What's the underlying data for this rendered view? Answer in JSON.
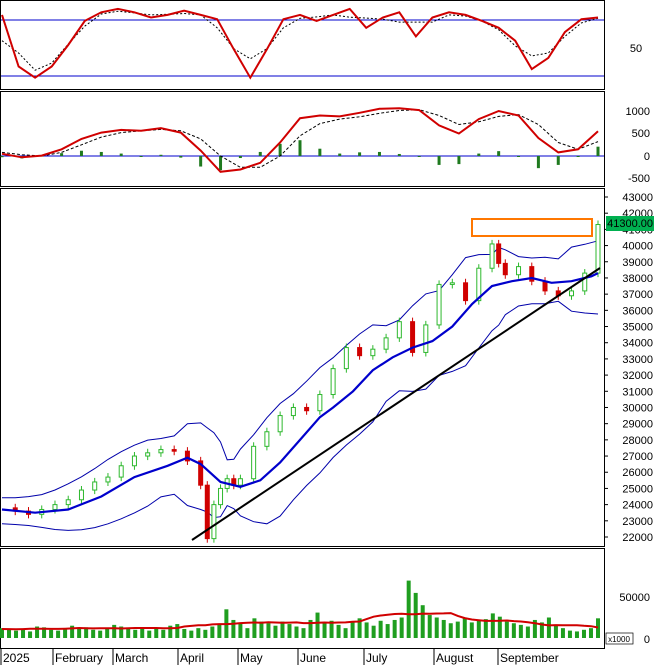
{
  "colors": {
    "background": "#ffffff",
    "frame": "#000000",
    "stoch_line": "#d00000",
    "stoch_signal": "#000000",
    "stoch_level_line": "#0000cc",
    "macd_line": "#d00000",
    "macd_signal": "#000000",
    "macd_hist": "#1f7a1f",
    "candle_up": "#2db82d",
    "candle_down": "#d00000",
    "ma_line": "#0000cc",
    "band_line": "#0000aa",
    "trend_line": "#000000",
    "highlight_box": "#ff7700",
    "price_tag_bg": "#00b050",
    "price_tag_text": "#ffffff",
    "volume_bar": "#1f9e1f",
    "volume_ma": "#d00000"
  },
  "x_axis": {
    "labels": [
      "2025",
      "February",
      "March",
      "April",
      "May",
      "June",
      "July",
      "August",
      "September"
    ]
  },
  "stochastic": {
    "tick_labels": [
      "50"
    ],
    "level_upper": 80,
    "level_lower": 20
  },
  "macd": {
    "tick_labels": [
      "1000",
      "500",
      "0",
      "-500"
    ]
  },
  "price": {
    "tick_labels": [
      "43000",
      "42000",
      "41000",
      "40000",
      "39000",
      "38000",
      "37000",
      "36000",
      "35000",
      "34000",
      "33000",
      "32000",
      "31000",
      "30000",
      "29000",
      "28000",
      "27000",
      "26000",
      "25000",
      "24000",
      "23000",
      "22000"
    ],
    "last_price_label": "41300.00"
  },
  "volume": {
    "tick_labels": [
      "50000",
      "0"
    ],
    "unit_label": "x1000"
  },
  "chart_data": [
    {
      "type": "line",
      "panel": "stochastic",
      "series": [
        {
          "x": [
            0,
            5,
            10,
            15,
            20,
            25,
            30,
            35,
            40,
            45,
            50,
            55,
            60,
            65,
            70,
            75,
            80,
            85,
            90,
            95,
            100,
            105,
            110,
            115,
            120,
            125,
            130,
            135,
            140,
            145,
            150,
            155,
            160,
            165,
            170,
            175,
            180
          ],
          "values": [
            85,
            25,
            12,
            25,
            50,
            78,
            88,
            92,
            88,
            82,
            85,
            90,
            85,
            80,
            45,
            12,
            45,
            80,
            85,
            78,
            85,
            92,
            70,
            82,
            88,
            60,
            82,
            88,
            85,
            78,
            70,
            55,
            22,
            35,
            65,
            80,
            82
          ]
        }
      ],
      "ylim": [
        0,
        100
      ]
    },
    {
      "type": "line",
      "panel": "macd",
      "series": [
        {
          "x": [
            0,
            6,
            12,
            18,
            24,
            30,
            36,
            42,
            48,
            54,
            60,
            66,
            72,
            78,
            84,
            90,
            96,
            102,
            108,
            114,
            120,
            126,
            132,
            138,
            144,
            150,
            156,
            162,
            168,
            174,
            180
          ],
          "values": [
            50,
            -30,
            10,
            150,
            380,
            520,
            580,
            560,
            620,
            520,
            120,
            -350,
            -300,
            -150,
            300,
            840,
            900,
            880,
            960,
            1050,
            1060,
            1020,
            680,
            500,
            820,
            1000,
            900,
            400,
            80,
            150,
            550
          ]
        },
        {
          "x": [
            0,
            6,
            12,
            18,
            24,
            30,
            36,
            42,
            48,
            54,
            60,
            66,
            72,
            78,
            84,
            90,
            96,
            102,
            108,
            114,
            120,
            126,
            132,
            138,
            144,
            150,
            156,
            162,
            168,
            174,
            180
          ],
          "values": [
            80,
            30,
            0,
            80,
            250,
            420,
            520,
            560,
            590,
            560,
            380,
            0,
            -250,
            -250,
            0,
            450,
            720,
            820,
            870,
            950,
            1010,
            1030,
            900,
            700,
            760,
            880,
            920,
            700,
            300,
            150,
            320
          ]
        }
      ],
      "ylim": [
        -600,
        1300
      ]
    },
    {
      "type": "line",
      "panel": "price",
      "series": [
        {
          "x": [
            0,
            4,
            8,
            12,
            16,
            20,
            24,
            28,
            32,
            36,
            40,
            44,
            48,
            52,
            56,
            60,
            62,
            64,
            66,
            68,
            70,
            72,
            76,
            80,
            84,
            88,
            92,
            96,
            100,
            104,
            108,
            112,
            116,
            120,
            124,
            128,
            132,
            136,
            140,
            144,
            148,
            150,
            152,
            156,
            160,
            164,
            168,
            172,
            176,
            180
          ],
          "values": [
            23800,
            23600,
            23400,
            23700,
            24000,
            24300,
            24900,
            25400,
            25700,
            26400,
            27000,
            27200,
            27400,
            27300,
            26700,
            25200,
            21900,
            24000,
            25000,
            25600,
            25200,
            25600,
            27600,
            28500,
            29500,
            30000,
            29800,
            30800,
            32400,
            33700,
            33200,
            33600,
            34300,
            35300,
            33400,
            35100,
            37600,
            37700,
            36600,
            38600,
            40100,
            38900,
            38200,
            38700,
            37800,
            37200,
            36900,
            37200,
            38300,
            41300
          ]
        },
        {
          "x": [
            0,
            10,
            20,
            30,
            40,
            50,
            56,
            60,
            66,
            72,
            78,
            84,
            90,
            96,
            100,
            106,
            112,
            118,
            124,
            130,
            136,
            142,
            148,
            154,
            160,
            166,
            172,
            178,
            180
          ],
          "values": [
            23700,
            23500,
            23700,
            24500,
            25700,
            26400,
            26900,
            26500,
            25400,
            25100,
            25500,
            26600,
            28000,
            29400,
            30000,
            31000,
            32300,
            33100,
            33700,
            34100,
            35000,
            36400,
            37500,
            37800,
            38000,
            37700,
            37800,
            38100,
            38300
          ]
        }
      ],
      "ylim": [
        21500,
        43300
      ]
    },
    {
      "type": "bar",
      "panel": "volume",
      "values": [
        12000,
        10000,
        9000,
        11000,
        8000,
        14000,
        13000,
        10000,
        9000,
        12000,
        15000,
        11000,
        13000,
        10000,
        9000,
        12000,
        16000,
        14000,
        11000,
        10000,
        13000,
        9000,
        12000,
        10000,
        15000,
        17000,
        11000,
        9000,
        12000,
        10000,
        14000,
        16000,
        35000,
        22000,
        18000,
        12000,
        24000,
        20000,
        18000,
        15000,
        20000,
        17000,
        14000,
        12000,
        22000,
        31000,
        18000,
        21000,
        16000,
        12000,
        20000,
        24000,
        19000,
        15000,
        21000,
        17000,
        22000,
        25000,
        70000,
        55000,
        40000,
        28000,
        25000,
        22000,
        18000,
        20000,
        24000,
        19000,
        21000,
        23000,
        30000,
        26000,
        20000,
        18000,
        16000,
        14000,
        22000,
        19000,
        25000,
        15000,
        12000,
        9000,
        8000,
        10000,
        12000,
        24000
      ],
      "ylim": [
        0,
        100000
      ]
    }
  ]
}
